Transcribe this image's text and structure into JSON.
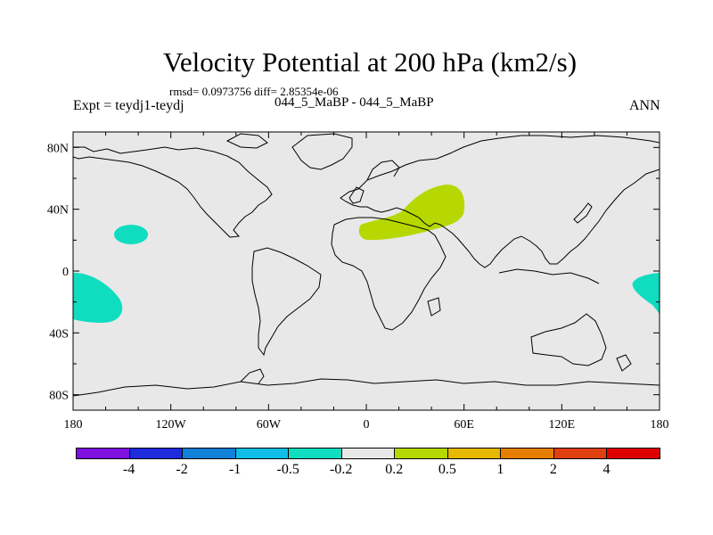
{
  "chart_data": {
    "type": "heatmap",
    "title": "Velocity Potential at 200 hPa (km2/s)",
    "subtitle_stats": "rmsd= 0.0973756 diff= 2.85354e-06",
    "left_label": "Expt = teydj1-teydj",
    "center_label": "044_5_MaBP - 044_5_MaBP",
    "right_label": "ANN",
    "xlim": [
      -180,
      180
    ],
    "ylim": [
      -90,
      90
    ],
    "x_ticks": [
      {
        "value": -180,
        "label": "180"
      },
      {
        "value": -120,
        "label": "120W"
      },
      {
        "value": -60,
        "label": "60W"
      },
      {
        "value": 0,
        "label": "0"
      },
      {
        "value": 60,
        "label": "60E"
      },
      {
        "value": 120,
        "label": "120E"
      },
      {
        "value": 180,
        "label": "180"
      }
    ],
    "y_ticks": [
      {
        "value": 80,
        "label": "80N"
      },
      {
        "value": 40,
        "label": "40N"
      },
      {
        "value": 0,
        "label": "0"
      },
      {
        "value": -40,
        "label": "40S"
      },
      {
        "value": -80,
        "label": "80S"
      }
    ],
    "colorbar": {
      "colors": [
        "#7e10e0",
        "#1d2bdc",
        "#1180d8",
        "#10bde6",
        "#10dcc0",
        "#e8e8e8",
        "#b6d800",
        "#e6b800",
        "#e67f00",
        "#e04010",
        "#e00000"
      ],
      "labels": [
        "-4",
        "-2",
        "-1",
        "-0.5",
        "-0.2",
        "0.2",
        "0.5",
        "1",
        "2",
        "4"
      ]
    },
    "background_color": "#e8e8e8",
    "anomalies": [
      {
        "name": "central-pacific-negative",
        "sign": "negative",
        "lon": -142,
        "lat": 18
      },
      {
        "name": "south-pacific-negative-west",
        "sign": "negative",
        "lon": -168,
        "lat": -21
      },
      {
        "name": "south-pacific-negative-east",
        "sign": "negative",
        "lon": 172,
        "lat": -16
      },
      {
        "name": "middle-east-positive",
        "sign": "positive",
        "lon": 40,
        "lat": 32
      }
    ]
  }
}
